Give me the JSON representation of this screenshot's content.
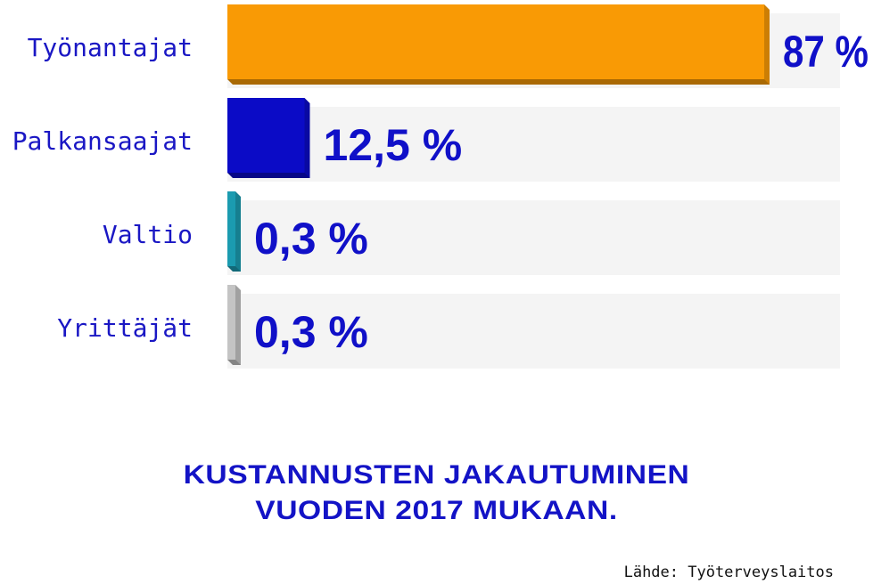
{
  "chart_data": {
    "type": "bar",
    "orientation": "horizontal",
    "categories": [
      "Työnantajat",
      "Palkansaajat",
      "Valtio",
      "Yrittäjät"
    ],
    "values": [
      87,
      12.5,
      0.3,
      0.3
    ],
    "value_labels": [
      "87 %",
      "12,5 %",
      "0,3 %",
      "0,3 %"
    ],
    "colors": [
      "#f99a05",
      "#0b0bc6",
      "#1b9bb0",
      "#c4c4c4"
    ],
    "track_color": "#f4f4f4",
    "xlim": [
      0,
      87
    ],
    "title_lines": [
      "KUSTANNUSTEN JAKAUTUMINEN",
      "VUODEN 2017 MUKAAN."
    ],
    "source": "Lähde: Työterveyslaitos",
    "grid": false,
    "legend": "none"
  }
}
